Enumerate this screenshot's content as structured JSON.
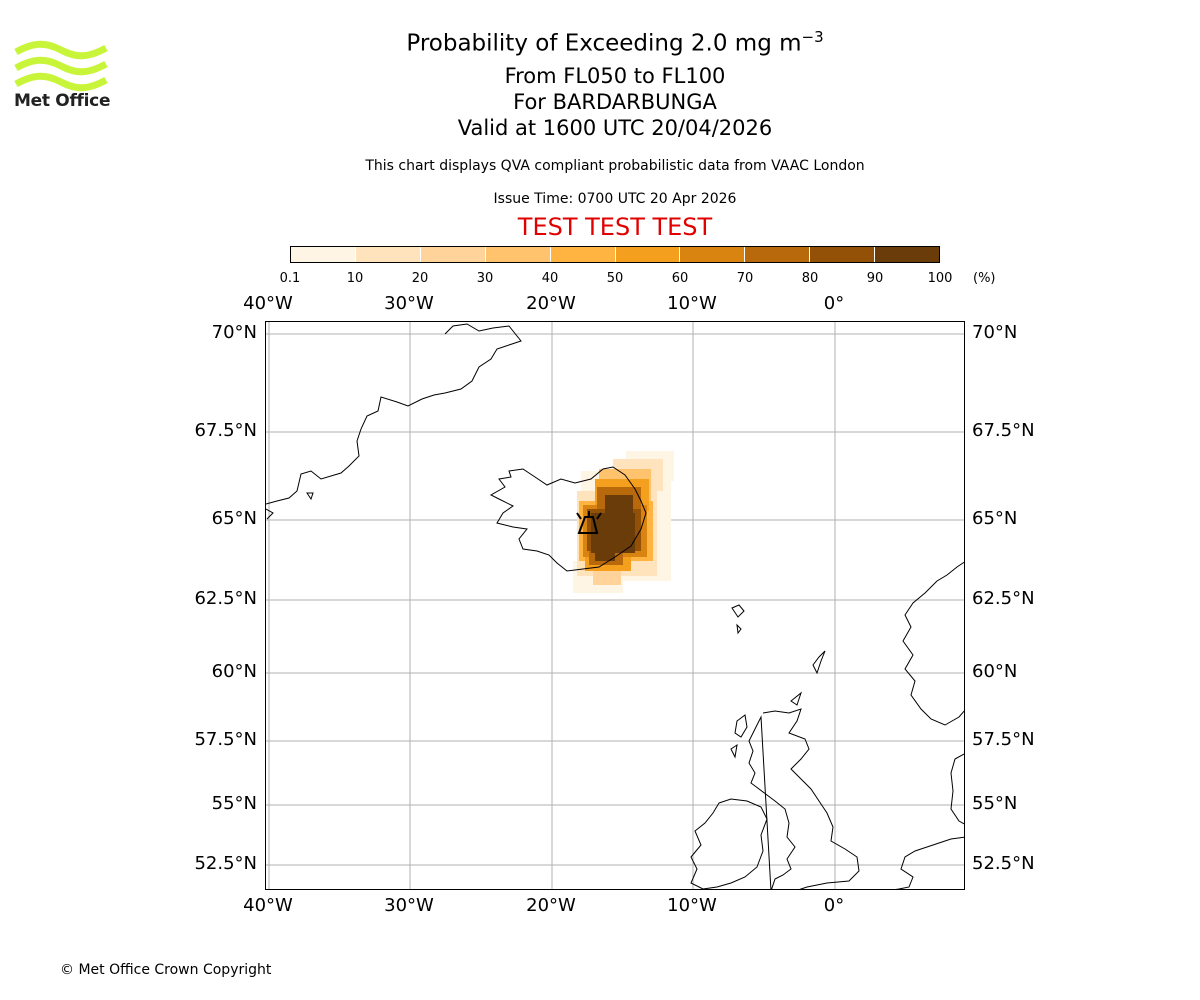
{
  "logo": {
    "text": "Met Office",
    "color": "#c8f53a"
  },
  "title": {
    "main": "Probability of Exceeding 2.0 mg m",
    "superscript": "−3",
    "levels": "From FL050 to FL100",
    "volcano": "For BARDARBUNGA",
    "valid": "Valid at 1600 UTC 20/04/2026"
  },
  "description": "This chart displays QVA compliant probabilistic data from VAAC London",
  "issue_time": "Issue Time: 0700 UTC 20 Apr 2026",
  "test_banner": {
    "text": "TEST TEST TEST",
    "color": "#e00000"
  },
  "colorbar": {
    "ticks": [
      "0.1",
      "10",
      "20",
      "30",
      "40",
      "50",
      "60",
      "70",
      "80",
      "90",
      "100"
    ],
    "unit": "(%)",
    "colors": [
      "#fff5e5",
      "#ffe3bc",
      "#ffd39a",
      "#ffc36e",
      "#ffb340",
      "#f59f1f",
      "#d98411",
      "#b8690b",
      "#935108",
      "#693c0a"
    ]
  },
  "map": {
    "lon_labels": [
      "40°W",
      "30°W",
      "20°W",
      "10°W",
      "0°"
    ],
    "lat_labels": [
      "70°N",
      "67.5°N",
      "65°N",
      "62.5°N",
      "60°N",
      "57.5°N",
      "55°N",
      "52.5°N"
    ],
    "volcano_icon": "volcano-icon"
  },
  "copyright": "© Met Office Crown Copyright"
}
